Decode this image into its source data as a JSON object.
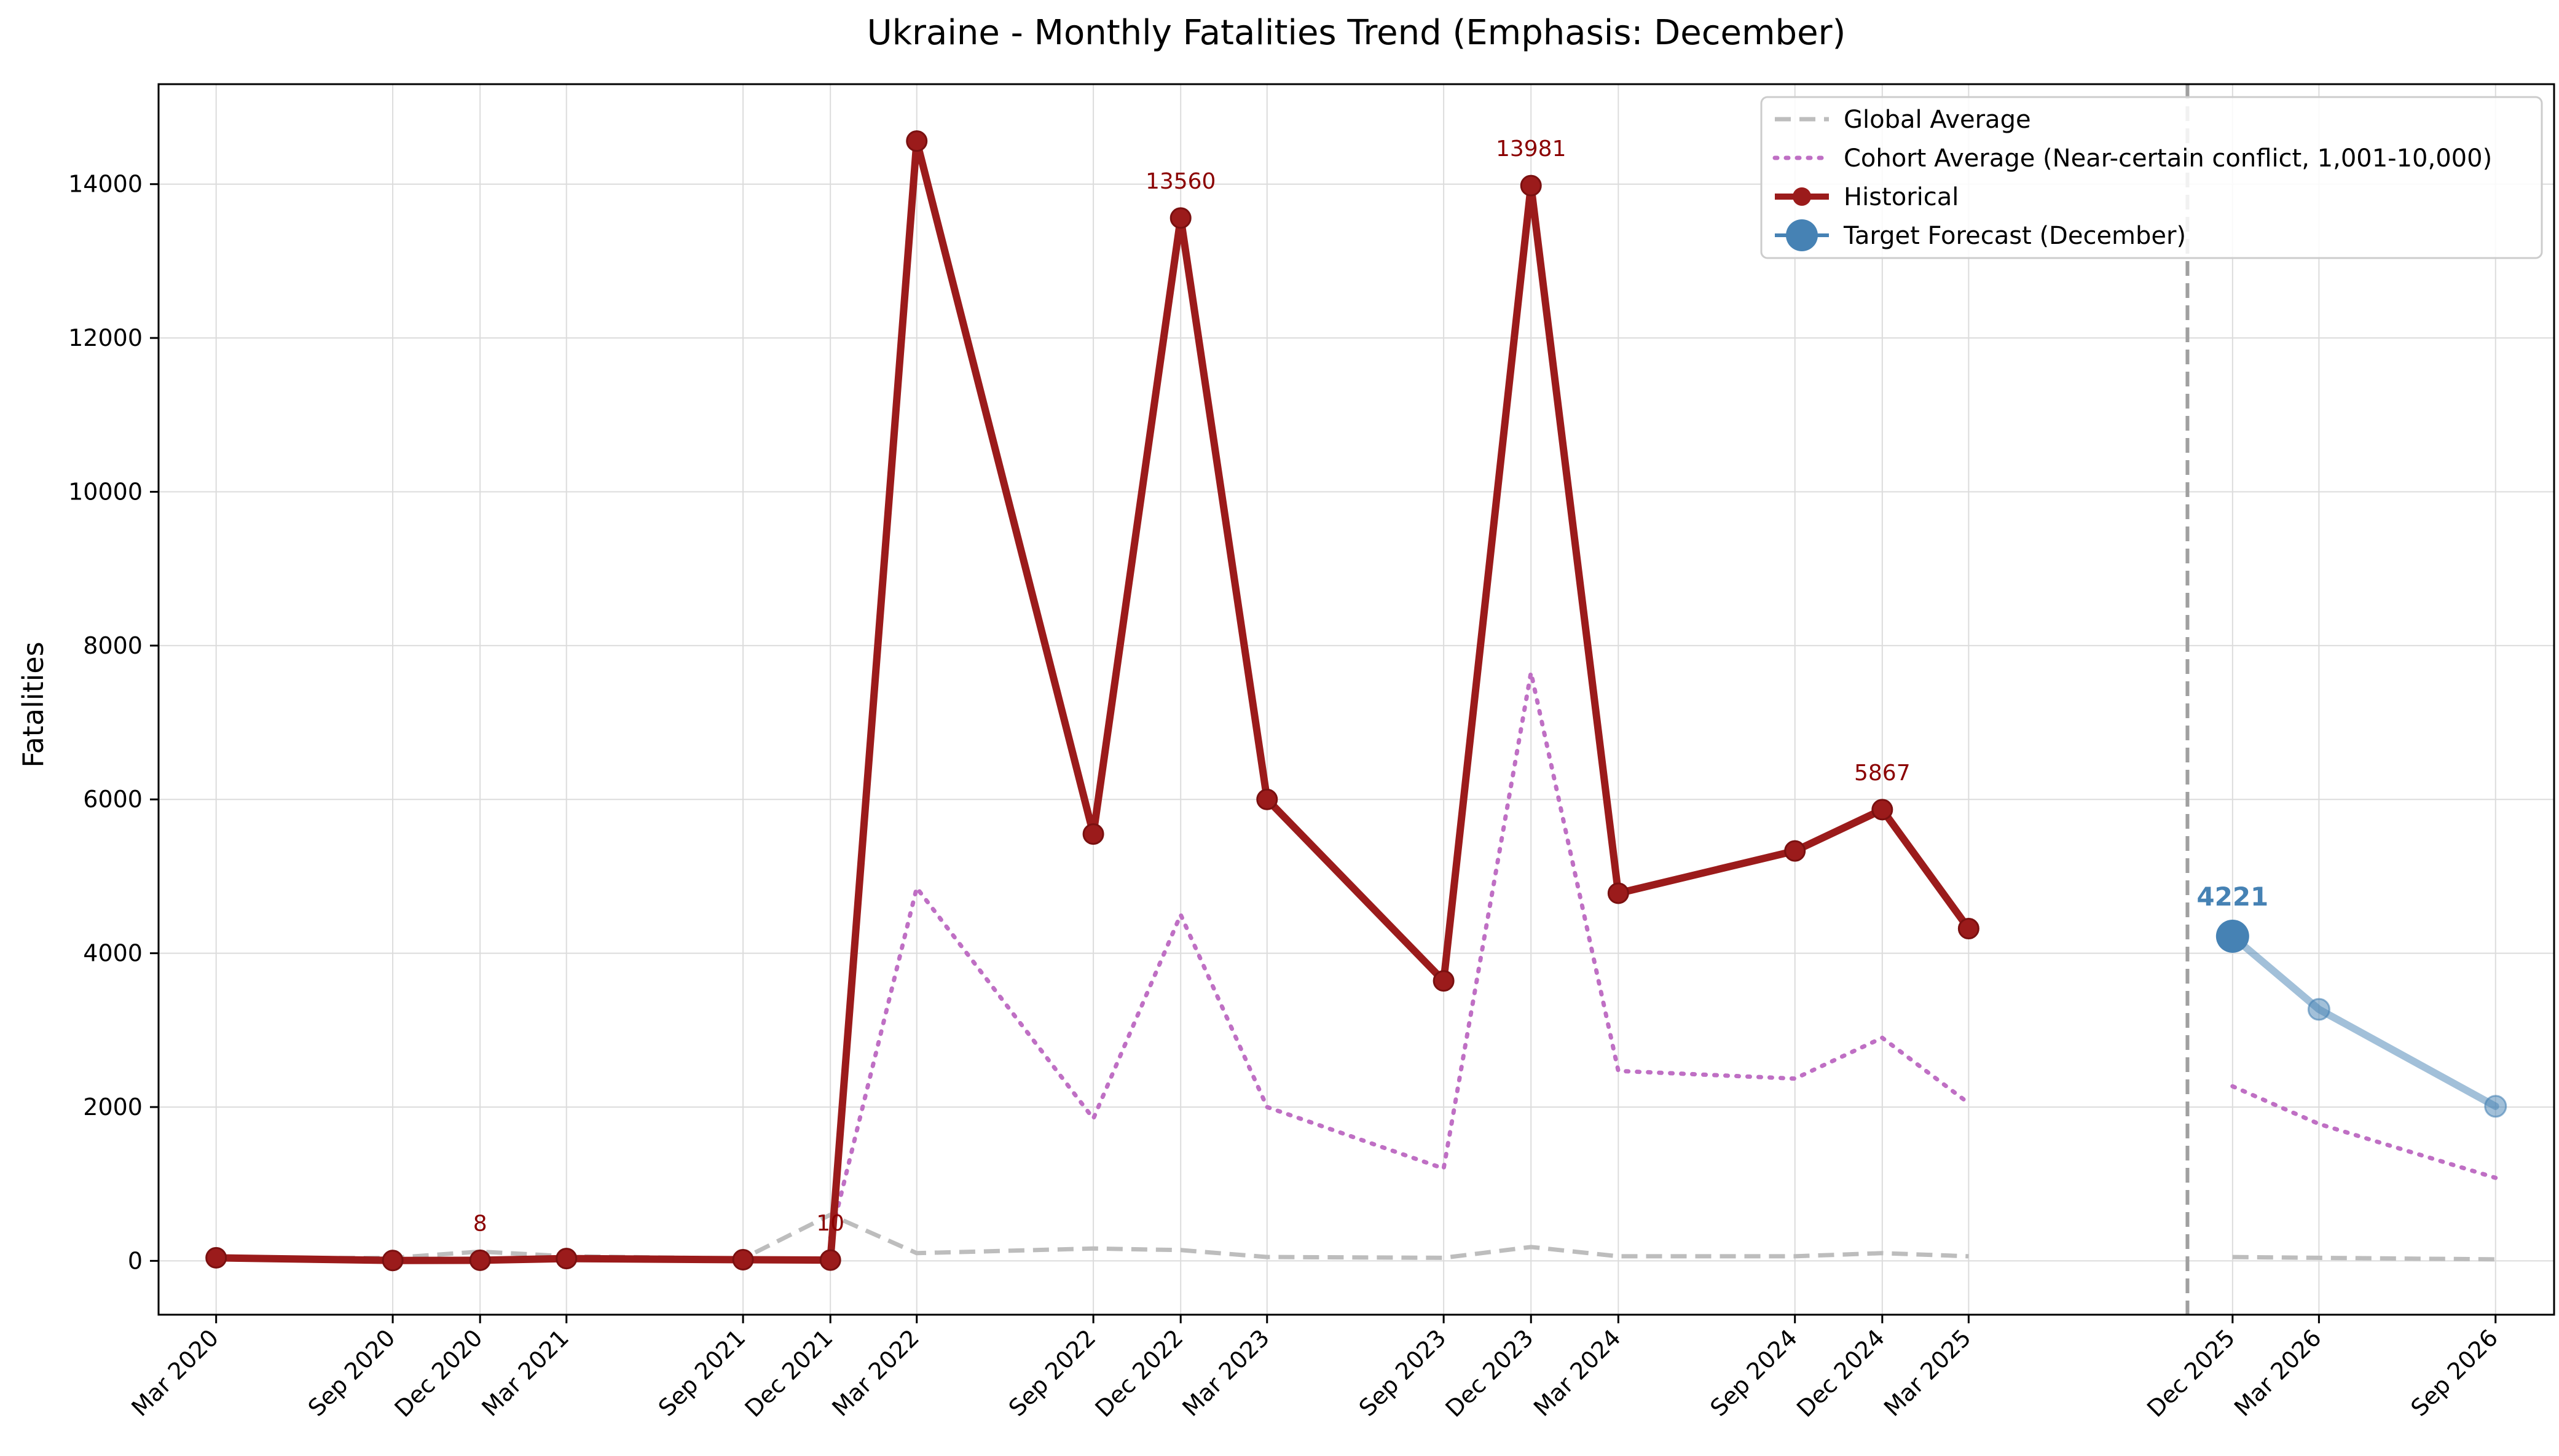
{
  "chart_data": {
    "type": "line",
    "title": "Ukraine - Monthly Fatalities Trend (Emphasis: December)",
    "xlabel": "",
    "ylabel": "Fatalities",
    "ylim": [
      -700,
      15300
    ],
    "yticks": [
      0,
      2000,
      4000,
      6000,
      8000,
      10000,
      12000,
      14000
    ],
    "ytick_labels": [
      "0",
      "2000",
      "4000",
      "6000",
      "8000",
      "10000",
      "12000",
      "14000"
    ],
    "xlim": [
      "2020-01-01",
      "2026-11-01"
    ],
    "xticks": [
      "2020-03",
      "2020-09",
      "2020-12",
      "2021-03",
      "2021-09",
      "2021-12",
      "2022-03",
      "2022-09",
      "2022-12",
      "2023-03",
      "2023-09",
      "2023-12",
      "2024-03",
      "2024-09",
      "2024-12",
      "2025-03",
      "2025-12",
      "2026-03",
      "2026-09"
    ],
    "xtick_labels": [
      "Mar 2020",
      "Sep 2020",
      "Dec 2020",
      "Mar 2021",
      "Sep 2021",
      "Dec 2021",
      "Mar 2022",
      "Sep 2022",
      "Dec 2022",
      "Mar 2023",
      "Sep 2023",
      "Dec 2023",
      "Mar 2024",
      "Sep 2024",
      "Dec 2024",
      "Mar 2025",
      "Dec 2025",
      "Mar 2026",
      "Sep 2026"
    ],
    "grid": true,
    "legend_position": "top-right",
    "forecast_divider_x": "2025-10-15",
    "series": [
      {
        "name": "Global Average",
        "style": "dashed",
        "color": "#bdbdbd",
        "segments": [
          [
            {
              "x": "2020-03",
              "y": 30
            },
            {
              "x": "2020-09",
              "y": 40
            },
            {
              "x": "2020-12",
              "y": 120
            },
            {
              "x": "2021-03",
              "y": 60
            },
            {
              "x": "2021-09",
              "y": 30
            },
            {
              "x": "2021-12",
              "y": 600
            },
            {
              "x": "2022-03",
              "y": 100
            },
            {
              "x": "2022-09",
              "y": 160
            },
            {
              "x": "2022-12",
              "y": 140
            },
            {
              "x": "2023-03",
              "y": 50
            },
            {
              "x": "2023-09",
              "y": 40
            },
            {
              "x": "2023-12",
              "y": 180
            },
            {
              "x": "2024-03",
              "y": 60
            },
            {
              "x": "2024-09",
              "y": 60
            },
            {
              "x": "2024-12",
              "y": 100
            },
            {
              "x": "2025-03",
              "y": 60
            }
          ],
          [
            {
              "x": "2025-12",
              "y": 50
            },
            {
              "x": "2026-03",
              "y": 40
            },
            {
              "x": "2026-09",
              "y": 20
            }
          ]
        ]
      },
      {
        "name": "Cohort Average (Near-certain conflict, 1,001-10,000)",
        "style": "dotted",
        "color": "#bf6fc4",
        "segments": [
          [
            {
              "x": "2021-12",
              "y": 300
            },
            {
              "x": "2022-03",
              "y": 4850
            },
            {
              "x": "2022-09",
              "y": 1850
            },
            {
              "x": "2022-12",
              "y": 4500
            },
            {
              "x": "2023-03",
              "y": 2000
            },
            {
              "x": "2023-09",
              "y": 1200
            },
            {
              "x": "2023-12",
              "y": 7650
            },
            {
              "x": "2024-03",
              "y": 2470
            },
            {
              "x": "2024-09",
              "y": 2370
            },
            {
              "x": "2024-12",
              "y": 2900
            },
            {
              "x": "2025-03",
              "y": 2050
            }
          ],
          [
            {
              "x": "2025-12",
              "y": 2270
            },
            {
              "x": "2026-03",
              "y": 1780
            },
            {
              "x": "2026-09",
              "y": 1080
            }
          ]
        ]
      },
      {
        "name": "Historical",
        "style": "solid-marker",
        "color": "#9b1b1b",
        "segments": [
          [
            {
              "x": "2020-03",
              "y": 40
            },
            {
              "x": "2020-09",
              "y": 5
            },
            {
              "x": "2020-12",
              "y": 8
            },
            {
              "x": "2021-03",
              "y": 30
            },
            {
              "x": "2021-09",
              "y": 15
            },
            {
              "x": "2021-12",
              "y": 10
            },
            {
              "x": "2022-03",
              "y": 14560
            },
            {
              "x": "2022-09",
              "y": 5550
            },
            {
              "x": "2022-12",
              "y": 13560
            },
            {
              "x": "2023-03",
              "y": 6000
            },
            {
              "x": "2023-09",
              "y": 3640
            },
            {
              "x": "2023-12",
              "y": 13981
            },
            {
              "x": "2024-03",
              "y": 4780
            },
            {
              "x": "2024-09",
              "y": 5330
            },
            {
              "x": "2024-12",
              "y": 5867
            },
            {
              "x": "2025-03",
              "y": 4320
            }
          ]
        ]
      },
      {
        "name": "Target Forecast (December)",
        "style": "forecast",
        "color": "#4682b4",
        "segments": [
          [
            {
              "x": "2025-12",
              "y": 4221
            },
            {
              "x": "2026-03",
              "y": 3270
            },
            {
              "x": "2026-09",
              "y": 2010
            }
          ]
        ]
      }
    ],
    "annotations": [
      {
        "x": "2020-12",
        "y": 8,
        "text": "8",
        "kind": "historical"
      },
      {
        "x": "2021-12",
        "y": 10,
        "text": "10",
        "kind": "historical"
      },
      {
        "x": "2022-12",
        "y": 13560,
        "text": "13560",
        "kind": "historical"
      },
      {
        "x": "2023-12",
        "y": 13981,
        "text": "13981",
        "kind": "historical"
      },
      {
        "x": "2024-12",
        "y": 5867,
        "text": "5867",
        "kind": "historical"
      },
      {
        "x": "2025-12",
        "y": 4221,
        "text": "4221",
        "kind": "forecast"
      }
    ]
  }
}
